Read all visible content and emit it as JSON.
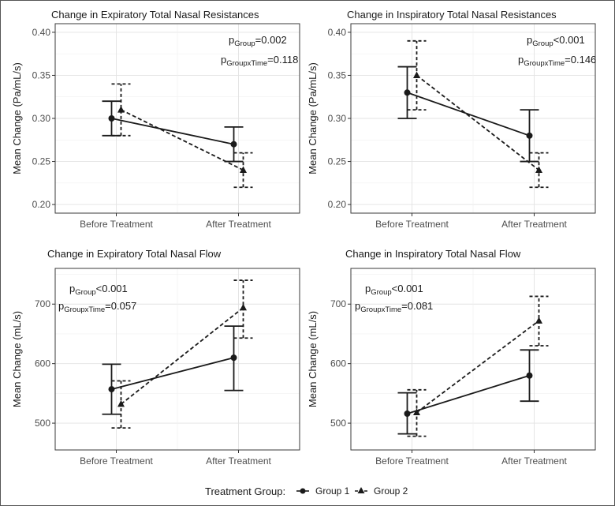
{
  "chart_data": [
    {
      "type": "line",
      "title": "Change in Expiratory Total Nasal Resistances",
      "ylabel": "Mean Change (Pa/mL/s)",
      "xlabel": "",
      "categories": [
        "Before Treatment",
        "After Treatment"
      ],
      "ylim": [
        0.19,
        0.41
      ],
      "yticks": [
        "0.20",
        "0.25",
        "0.30",
        "0.35",
        "0.40"
      ],
      "ytick_values": [
        0.2,
        0.25,
        0.3,
        0.35,
        0.4
      ],
      "grid": true,
      "annotation": {
        "line1": {
          "p": "p",
          "sub": "Group",
          "value": "=0.002"
        },
        "line2": {
          "p": "p",
          "sub": "GroupxTime",
          "value": "=0.118"
        },
        "position": "top-right"
      },
      "series": [
        {
          "name": "Group 1",
          "values": [
            0.3,
            0.27
          ],
          "lower": [
            0.28,
            0.25
          ],
          "upper": [
            0.32,
            0.29
          ]
        },
        {
          "name": "Group 2",
          "values": [
            0.31,
            0.24
          ],
          "lower": [
            0.28,
            0.22
          ],
          "upper": [
            0.34,
            0.26
          ]
        }
      ]
    },
    {
      "type": "line",
      "title": "Change in Inspiratory Total Nasal Resistances",
      "ylabel": "Mean Change (Pa/mL/s)",
      "xlabel": "",
      "categories": [
        "Before Treatment",
        "After Treatment"
      ],
      "ylim": [
        0.19,
        0.41
      ],
      "yticks": [
        "0.20",
        "0.25",
        "0.30",
        "0.35",
        "0.40"
      ],
      "ytick_values": [
        0.2,
        0.25,
        0.3,
        0.35,
        0.4
      ],
      "grid": true,
      "annotation": {
        "line1": {
          "p": "p",
          "sub": "Group",
          "value": "<0.001"
        },
        "line2": {
          "p": "p",
          "sub": "GroupxTime",
          "value": "=0.146"
        },
        "position": "top-right"
      },
      "series": [
        {
          "name": "Group 1",
          "values": [
            0.33,
            0.28
          ],
          "lower": [
            0.3,
            0.25
          ],
          "upper": [
            0.36,
            0.31
          ]
        },
        {
          "name": "Group 2",
          "values": [
            0.35,
            0.24
          ],
          "lower": [
            0.31,
            0.22
          ],
          "upper": [
            0.39,
            0.26
          ]
        }
      ]
    },
    {
      "type": "line",
      "title": "Change in Expiratory Total Nasal Flow",
      "ylabel": "Mean Change (mL/s)",
      "xlabel": "",
      "categories": [
        "Before Treatment",
        "After Treatment"
      ],
      "ylim": [
        455,
        760
      ],
      "yticks": [
        "500",
        "600",
        "700"
      ],
      "ytick_values": [
        500,
        600,
        700
      ],
      "grid": true,
      "annotation": {
        "line1": {
          "p": "p",
          "sub": "Group",
          "value": "<0.001"
        },
        "line2": {
          "p": "p",
          "sub": "GroupxTime",
          "value": "=0.057"
        },
        "position": "top-left"
      },
      "series": [
        {
          "name": "Group 1",
          "values": [
            557,
            610
          ],
          "lower": [
            515,
            555
          ],
          "upper": [
            599,
            663
          ]
        },
        {
          "name": "Group 2",
          "values": [
            532,
            694
          ],
          "lower": [
            492,
            643
          ],
          "upper": [
            571,
            740
          ]
        }
      ]
    },
    {
      "type": "line",
      "title": "Change in Inspiratory Total Nasal Flow",
      "ylabel": "Mean Change (mL/s)",
      "xlabel": "",
      "categories": [
        "Before Treatment",
        "After Treatment"
      ],
      "ylim": [
        455,
        760
      ],
      "yticks": [
        "500",
        "600",
        "700"
      ],
      "ytick_values": [
        500,
        600,
        700
      ],
      "grid": true,
      "annotation": {
        "line1": {
          "p": "p",
          "sub": "Group",
          "value": "<0.001"
        },
        "line2": {
          "p": "p",
          "sub": "GroupxTime",
          "value": "=0.081"
        },
        "position": "top-left"
      },
      "series": [
        {
          "name": "Group 1",
          "values": [
            516,
            580
          ],
          "lower": [
            482,
            537
          ],
          "upper": [
            551,
            623
          ]
        },
        {
          "name": "Group 2",
          "values": [
            518,
            672
          ],
          "lower": [
            478,
            630
          ],
          "upper": [
            556,
            713
          ]
        }
      ]
    }
  ],
  "legend": {
    "title": "Treatment Group:",
    "items": [
      {
        "label": "Group 1",
        "marker": "circle",
        "line": "solid"
      },
      {
        "label": "Group 2",
        "marker": "triangle",
        "line": "dashed"
      }
    ],
    "position": "bottom"
  },
  "colors": {
    "ink": "#1a1a1a",
    "grid": "#e3e3e3",
    "panel_border": "#3a3a3a",
    "tick_text": "#4d4d4d"
  }
}
